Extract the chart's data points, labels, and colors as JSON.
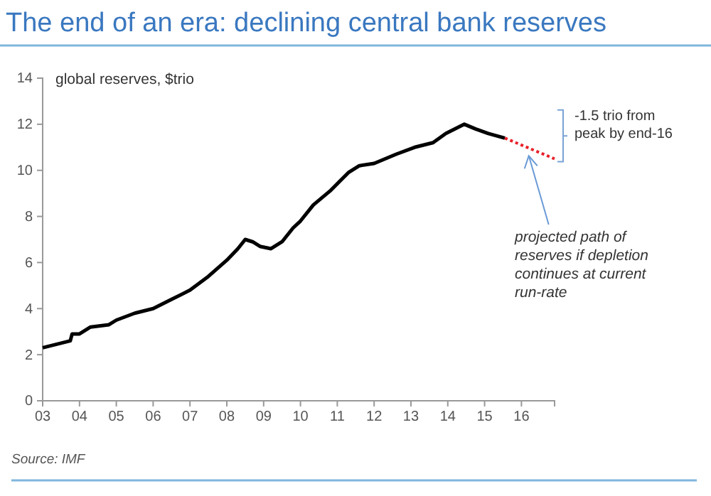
{
  "chart_data": {
    "type": "line",
    "title": "The end of an era: declining central bank reserves",
    "ylabel": "global reserves, $trio",
    "xlim": [
      2003,
      2016.9
    ],
    "xticks": [
      {
        "value": 2003,
        "label": "03"
      },
      {
        "value": 2004,
        "label": "04"
      },
      {
        "value": 2005,
        "label": "05"
      },
      {
        "value": 2006,
        "label": "06"
      },
      {
        "value": 2007,
        "label": "07"
      },
      {
        "value": 2008,
        "label": "08"
      },
      {
        "value": 2009,
        "label": "09"
      },
      {
        "value": 2010,
        "label": "10"
      },
      {
        "value": 2011,
        "label": "11"
      },
      {
        "value": 2012,
        "label": "12"
      },
      {
        "value": 2013,
        "label": "13"
      },
      {
        "value": 2014,
        "label": "14"
      },
      {
        "value": 2015,
        "label": "15"
      },
      {
        "value": 2016,
        "label": "16"
      }
    ],
    "ylim": [
      0,
      14
    ],
    "yticks": [
      0,
      2,
      4,
      6,
      8,
      10,
      12,
      14
    ],
    "grid": false,
    "marker": "none",
    "series": [
      {
        "color": "#000000",
        "line_style": "solid",
        "x": [
          2003.0,
          2003.5,
          2003.75,
          2003.8,
          2004.0,
          2004.3,
          2004.8,
          2005.0,
          2005.5,
          2006.0,
          2006.5,
          2007.0,
          2007.5,
          2008.0,
          2008.3,
          2008.5,
          2008.7,
          2008.9,
          2009.2,
          2009.5,
          2009.8,
          2010.0,
          2010.35,
          2010.8,
          2011.3,
          2011.6,
          2012.0,
          2012.6,
          2013.1,
          2013.6,
          2013.95,
          2014.45,
          2014.75,
          2015.1,
          2015.55
        ],
        "values": [
          2.3,
          2.5,
          2.6,
          2.9,
          2.9,
          3.2,
          3.3,
          3.5,
          3.8,
          4.0,
          4.4,
          4.8,
          5.4,
          6.1,
          6.6,
          7.0,
          6.9,
          6.7,
          6.6,
          6.9,
          7.5,
          7.8,
          8.5,
          9.1,
          9.9,
          10.2,
          10.3,
          10.7,
          11.0,
          11.2,
          11.6,
          12.0,
          11.8,
          11.6,
          11.4
        ]
      },
      {
        "color": "#e8202a",
        "line_style": "dotted",
        "x": [
          2015.55,
          2016.9
        ],
        "values": [
          11.4,
          10.5
        ]
      }
    ],
    "annotations": [
      {
        "text": "-1.5 trio from peak by end-16",
        "x": 2016.9,
        "y": 10.5
      },
      "projected path of reserves  if depletion continues at current run-rate",
      "Source: IMF"
    ]
  }
}
